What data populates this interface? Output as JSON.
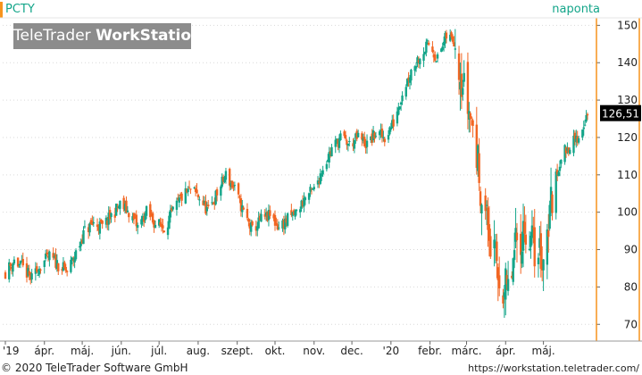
{
  "header": {
    "symbol": "PCTY",
    "period": "naponta",
    "brand_regular": "TeleTrader ",
    "brand_bold": "WorkStation"
  },
  "footer": {
    "copyright": "© 2020 TeleTrader Software GmbH",
    "url": "https://workstation.teletrader.com/"
  },
  "colors": {
    "up": "#13a589",
    "down": "#f26522",
    "accent": "#f7941d",
    "grid": "#d9d9d9",
    "axis_border": "#f7941d"
  },
  "chart_data": {
    "type": "candlestick",
    "title": "",
    "xlabel": "",
    "ylabel": "",
    "ylim": [
      66,
      152
    ],
    "y_ticks": [
      70,
      80,
      90,
      100,
      110,
      120,
      130,
      140,
      150
    ],
    "x_tick_labels": [
      "'19",
      "ápr.",
      "máj.",
      "jún.",
      "júl.",
      "aug.",
      "szept.",
      "okt.",
      "nov.",
      "dec.",
      "'20",
      "febr.",
      "márc.",
      "ápr.",
      "máj."
    ],
    "last_price_label": "126,51",
    "last_price": 126.51,
    "grid": true,
    "close_series": [
      [
        "2019-03-01",
        84
      ],
      [
        "2019-03-08",
        87
      ],
      [
        "2019-03-15",
        85
      ],
      [
        "2019-03-22",
        82
      ],
      [
        "2019-03-29",
        86
      ],
      [
        "2019-04-05",
        88
      ],
      [
        "2019-04-12",
        86
      ],
      [
        "2019-04-19",
        84
      ],
      [
        "2019-04-26",
        89
      ],
      [
        "2019-05-03",
        95
      ],
      [
        "2019-05-10",
        97
      ],
      [
        "2019-05-17",
        96
      ],
      [
        "2019-05-24",
        99
      ],
      [
        "2019-05-31",
        102
      ],
      [
        "2019-06-07",
        100
      ],
      [
        "2019-06-14",
        96
      ],
      [
        "2019-06-21",
        100
      ],
      [
        "2019-06-28",
        97
      ],
      [
        "2019-07-05",
        96
      ],
      [
        "2019-07-12",
        100
      ],
      [
        "2019-07-19",
        104
      ],
      [
        "2019-07-26",
        106
      ],
      [
        "2019-08-02",
        104
      ],
      [
        "2019-08-09",
        100
      ],
      [
        "2019-08-16",
        105
      ],
      [
        "2019-08-23",
        110
      ],
      [
        "2019-08-30",
        106
      ],
      [
        "2019-09-06",
        100
      ],
      [
        "2019-09-13",
        95
      ],
      [
        "2019-09-20",
        98
      ],
      [
        "2019-09-27",
        99
      ],
      [
        "2019-10-04",
        96
      ],
      [
        "2019-10-11",
        98
      ],
      [
        "2019-10-18",
        100
      ],
      [
        "2019-10-25",
        104
      ],
      [
        "2019-11-01",
        106
      ],
      [
        "2019-11-08",
        112
      ],
      [
        "2019-11-15",
        117
      ],
      [
        "2019-11-22",
        120
      ],
      [
        "2019-11-29",
        118
      ],
      [
        "2019-12-06",
        120
      ],
      [
        "2019-12-13",
        118
      ],
      [
        "2019-12-20",
        121
      ],
      [
        "2019-12-27",
        120
      ],
      [
        "2020-01-03",
        124
      ],
      [
        "2020-01-10",
        132
      ],
      [
        "2020-01-17",
        138
      ],
      [
        "2020-01-24",
        142
      ],
      [
        "2020-01-31",
        145
      ],
      [
        "2020-02-07",
        141
      ],
      [
        "2020-02-14",
        147
      ],
      [
        "2020-02-21",
        146
      ],
      [
        "2020-02-28",
        133
      ],
      [
        "2020-03-06",
        123
      ],
      [
        "2020-03-13",
        105
      ],
      [
        "2020-03-20",
        92
      ],
      [
        "2020-03-27",
        82
      ],
      [
        "2020-04-03",
        78
      ],
      [
        "2020-04-10",
        92
      ],
      [
        "2020-04-17",
        96
      ],
      [
        "2020-04-24",
        90
      ],
      [
        "2020-05-01",
        88
      ],
      [
        "2020-05-08",
        105
      ],
      [
        "2020-05-15",
        115
      ],
      [
        "2020-05-22",
        118
      ],
      [
        "2020-05-29",
        120
      ],
      [
        "2020-06-05",
        126.51
      ]
    ]
  }
}
